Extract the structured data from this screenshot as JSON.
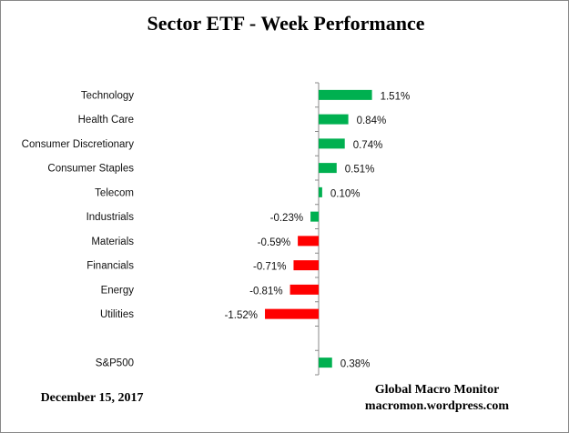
{
  "chart_data": {
    "type": "bar",
    "orientation": "horizontal",
    "title": "Sector ETF - Week Performance",
    "categories": [
      "Technology",
      "Health Care",
      "Consumer Discretionary",
      "Consumer Staples",
      "Telecom",
      "Industrials",
      "Materials",
      "Financials",
      "Energy",
      "Utilities",
      "",
      "S&P500"
    ],
    "values": [
      1.51,
      0.84,
      0.74,
      0.51,
      0.1,
      -0.23,
      -0.59,
      -0.71,
      -0.81,
      -1.52,
      null,
      0.38
    ],
    "data_labels": [
      "1.51%",
      "0.84%",
      "0.74%",
      "0.51%",
      "0.10%",
      "-0.23%",
      "-0.59%",
      "-0.71%",
      "-0.81%",
      "-1.52%",
      "",
      "0.38%"
    ],
    "bar_colors": [
      "#00b050",
      "#00b050",
      "#00b050",
      "#00b050",
      "#00b050",
      "#00b050",
      "#ff0000",
      "#ff0000",
      "#ff0000",
      "#ff0000",
      "",
      "#00b050"
    ],
    "unit": "%",
    "grid": false,
    "legend": "none"
  },
  "footer": {
    "date": "December 15, 2017",
    "source_name": "Global Macro Monitor",
    "source_url": "macromon.wordpress.com"
  }
}
